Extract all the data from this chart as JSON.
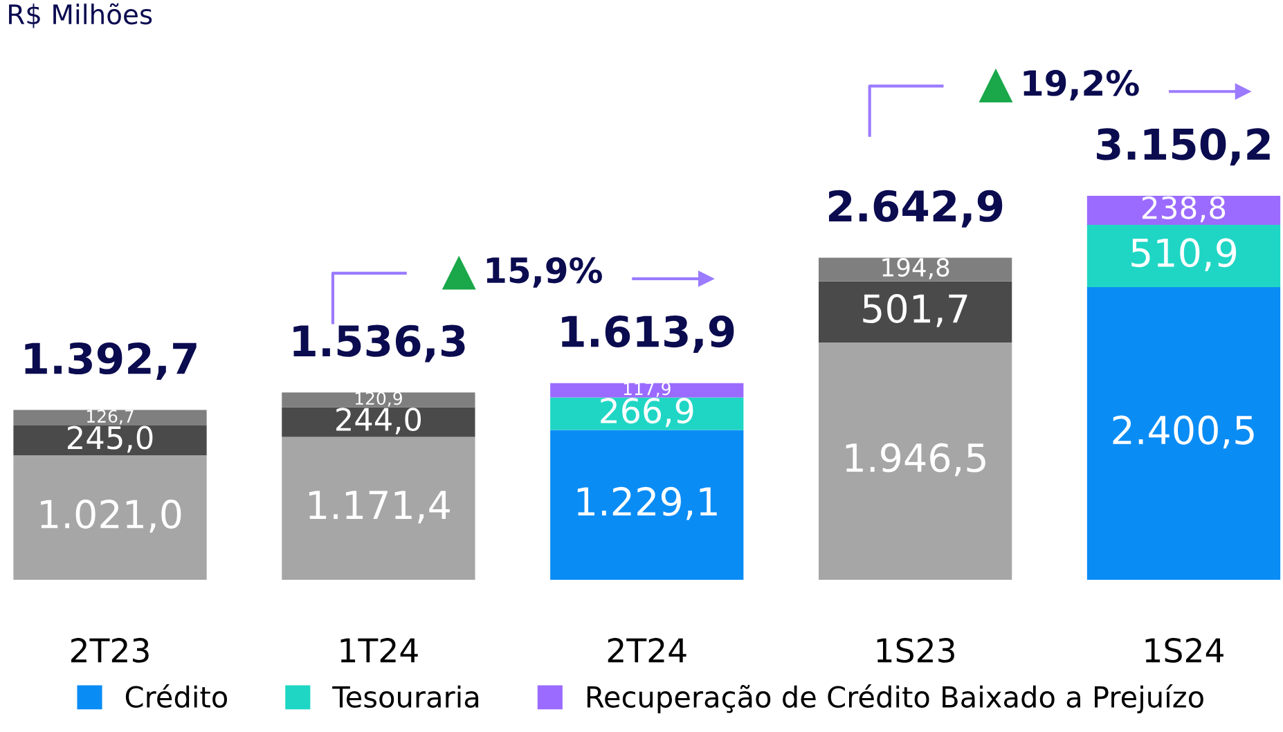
{
  "chart_data": {
    "type": "bar",
    "stacked": true,
    "title": "R$ Milhões",
    "categories": [
      "2T23",
      "1T24",
      "2T24",
      "1S23",
      "1S24"
    ],
    "series": [
      {
        "color": "#a6a6a6",
        "values": [
          1021.0,
          1171.4,
          null,
          1946.5,
          null
        ],
        "value_labels": [
          "1.021,0",
          "1.171,4",
          null,
          "1.946,5",
          null
        ]
      },
      {
        "name": "Crédito",
        "color": "#0a8cf5",
        "values": [
          null,
          null,
          1229.1,
          null,
          2400.5
        ],
        "value_labels": [
          null,
          null,
          "1.229,1",
          null,
          "2.400,5"
        ]
      },
      {
        "color": "#4a4a4a",
        "values": [
          245.0,
          244.0,
          null,
          501.7,
          null
        ],
        "value_labels": [
          "245,0",
          "244,0",
          null,
          "501,7",
          null
        ]
      },
      {
        "name": "Tesouraria",
        "color": "#1fd6c4",
        "values": [
          null,
          null,
          266.9,
          null,
          510.9
        ],
        "value_labels": [
          null,
          null,
          "266,9",
          null,
          "510,9"
        ]
      },
      {
        "color": "#7f7f7f",
        "values": [
          126.7,
          120.9,
          null,
          194.8,
          null
        ],
        "value_labels": [
          "126,7",
          "120,9",
          null,
          "194,8",
          null
        ]
      },
      {
        "name": "Recuperação de Crédito Baixado a Prejuízo",
        "color": "#9b6bff",
        "values": [
          null,
          null,
          117.9,
          null,
          238.8
        ],
        "value_labels": [
          null,
          null,
          "117,9",
          null,
          "238,8"
        ]
      }
    ],
    "totals": [
      "1.392,7",
      "1.536,3",
      "1.613,9",
      "2.642,9",
      "3.150,2"
    ],
    "annotations": [
      "15,9%",
      "19,2%"
    ],
    "legend": "bottom",
    "grid": false
  }
}
